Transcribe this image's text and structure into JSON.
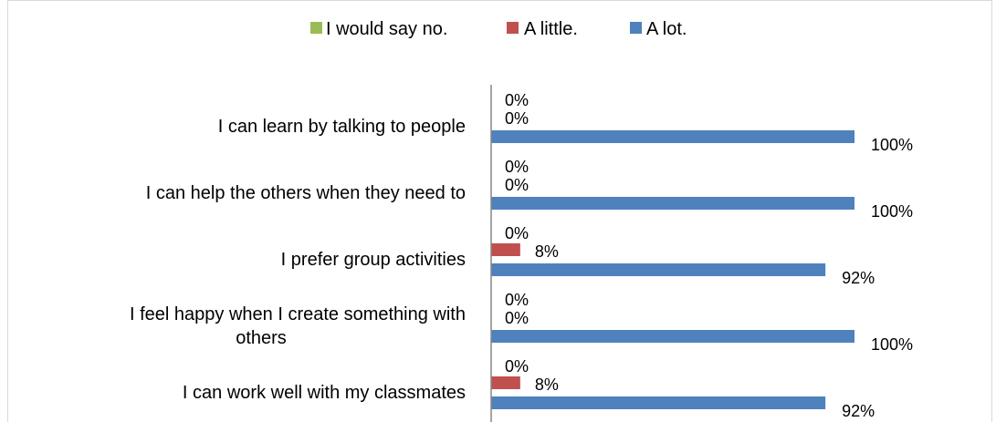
{
  "chart_data": {
    "type": "bar",
    "orientation": "horizontal",
    "categories": [
      [
        "I can learn by talking to people"
      ],
      [
        "I can help the others when they need to"
      ],
      [
        "I prefer group activities"
      ],
      [
        "I feel happy when I create something with",
        "others"
      ],
      [
        "I can work well with my classmates"
      ]
    ],
    "series": [
      {
        "name": "I would say no.",
        "color": "#9bbb59",
        "values": [
          0,
          0,
          0,
          0,
          0
        ],
        "labels": [
          "0%",
          "0%",
          "0%",
          "0%",
          "0%"
        ]
      },
      {
        "name": "A little.",
        "color": "#c0504d",
        "values": [
          0,
          0,
          8,
          0,
          8
        ],
        "labels": [
          "0%",
          "0%",
          "8%",
          "0%",
          "8%"
        ]
      },
      {
        "name": "A lot.",
        "color": "#4f81bd",
        "values": [
          100,
          100,
          92,
          100,
          92
        ],
        "labels": [
          "100%",
          "100%",
          "92%",
          "100%",
          "92%"
        ]
      }
    ],
    "xlim": [
      0,
      100
    ],
    "legend_position": "top"
  }
}
